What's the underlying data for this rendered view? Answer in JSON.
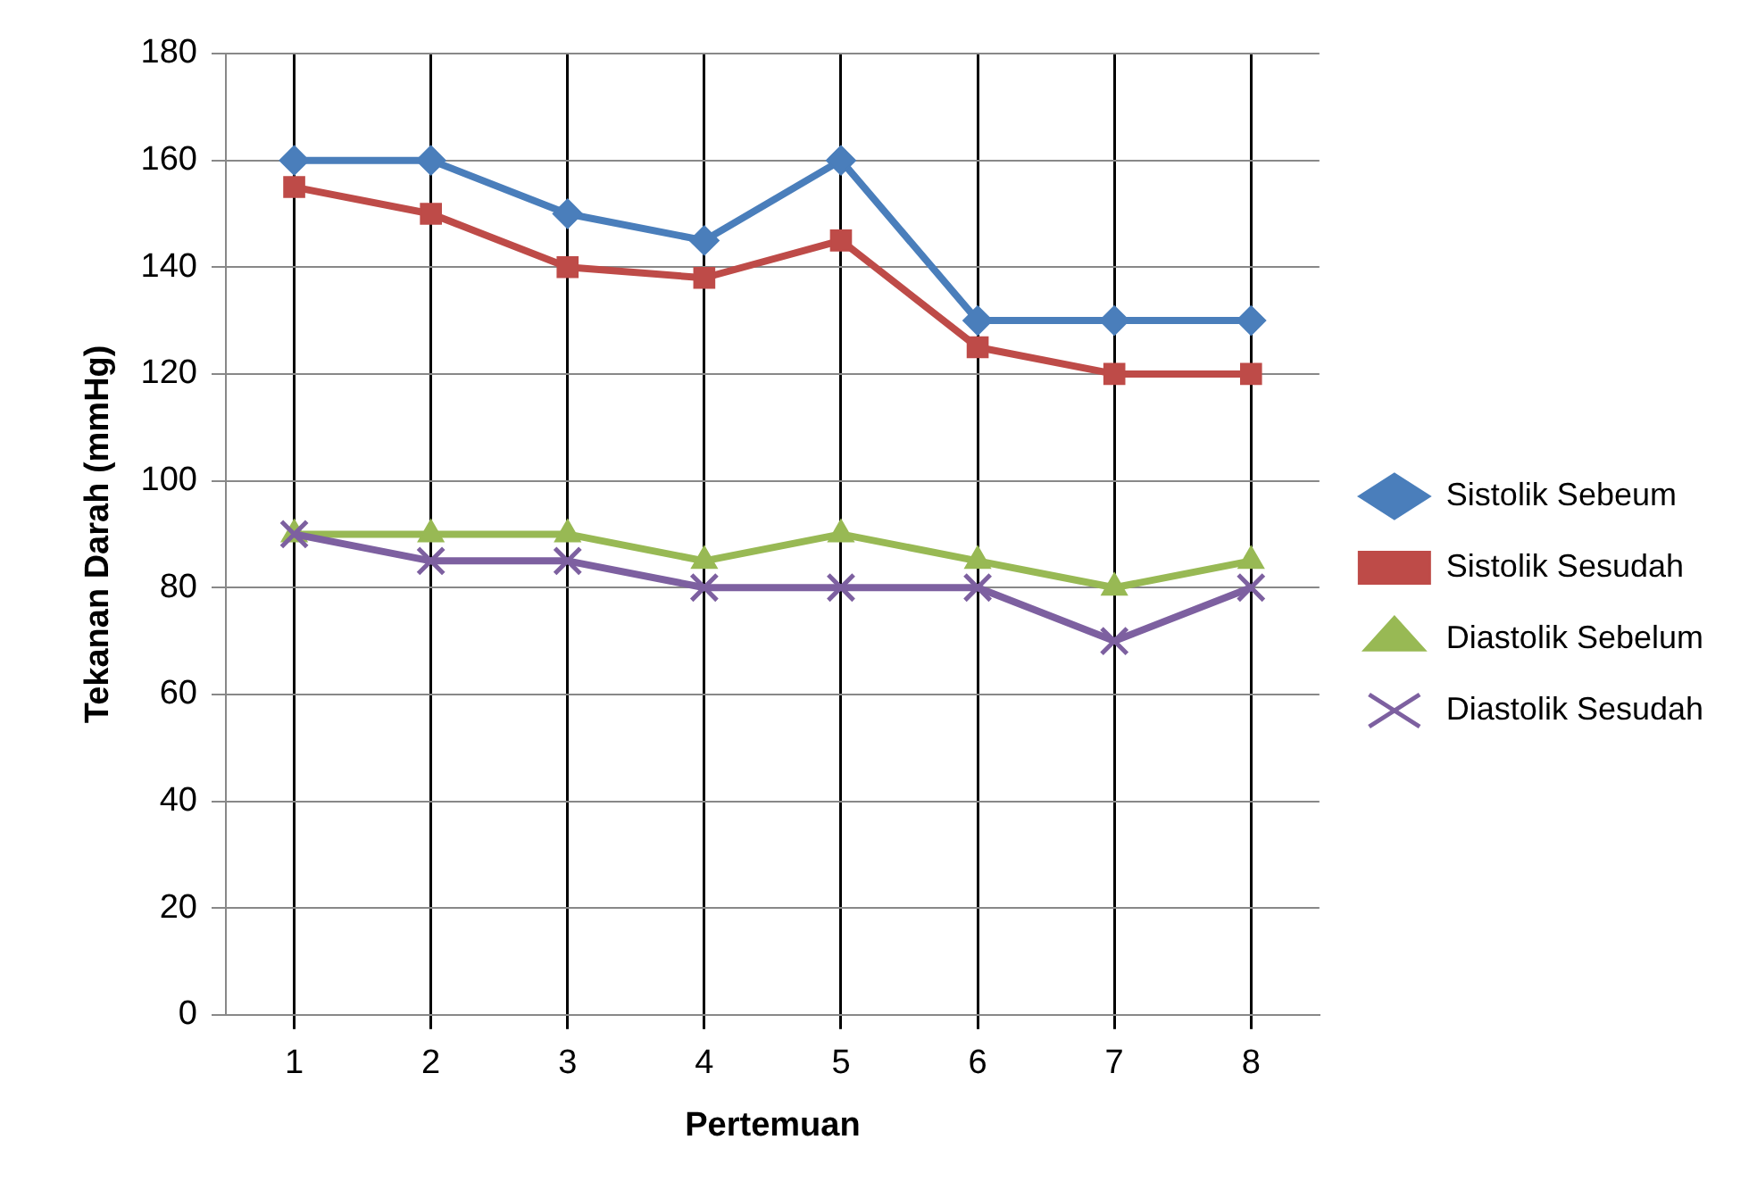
{
  "chart_data": {
    "type": "line",
    "xlabel": "Pertemuan",
    "ylabel": "Tekanan Darah (mmHg)",
    "categories": [
      "1",
      "2",
      "3",
      "4",
      "5",
      "6",
      "7",
      "8"
    ],
    "series": [
      {
        "name": "Sistolik Sebeum",
        "color": "#4a7ebb",
        "marker": "diamond",
        "values": [
          160,
          160,
          150,
          145,
          160,
          130,
          130,
          130
        ]
      },
      {
        "name": "Sistolik Sesudah",
        "color": "#be4b48",
        "marker": "square",
        "values": [
          155,
          150,
          140,
          138,
          145,
          125,
          120,
          120
        ]
      },
      {
        "name": "Diastolik Sebelum",
        "color": "#98b954",
        "marker": "triangle",
        "values": [
          90,
          90,
          90,
          85,
          90,
          85,
          80,
          85
        ]
      },
      {
        "name": "Diastolik Sesudah",
        "color": "#7d60a0",
        "marker": "cross",
        "values": [
          90,
          85,
          85,
          80,
          80,
          80,
          70,
          80
        ]
      }
    ],
    "ylim": [
      0,
      180
    ],
    "yticks": [
      0,
      20,
      40,
      60,
      80,
      100,
      120,
      140,
      160,
      180
    ],
    "grid": true,
    "legend": "right",
    "line_style": "solid"
  }
}
